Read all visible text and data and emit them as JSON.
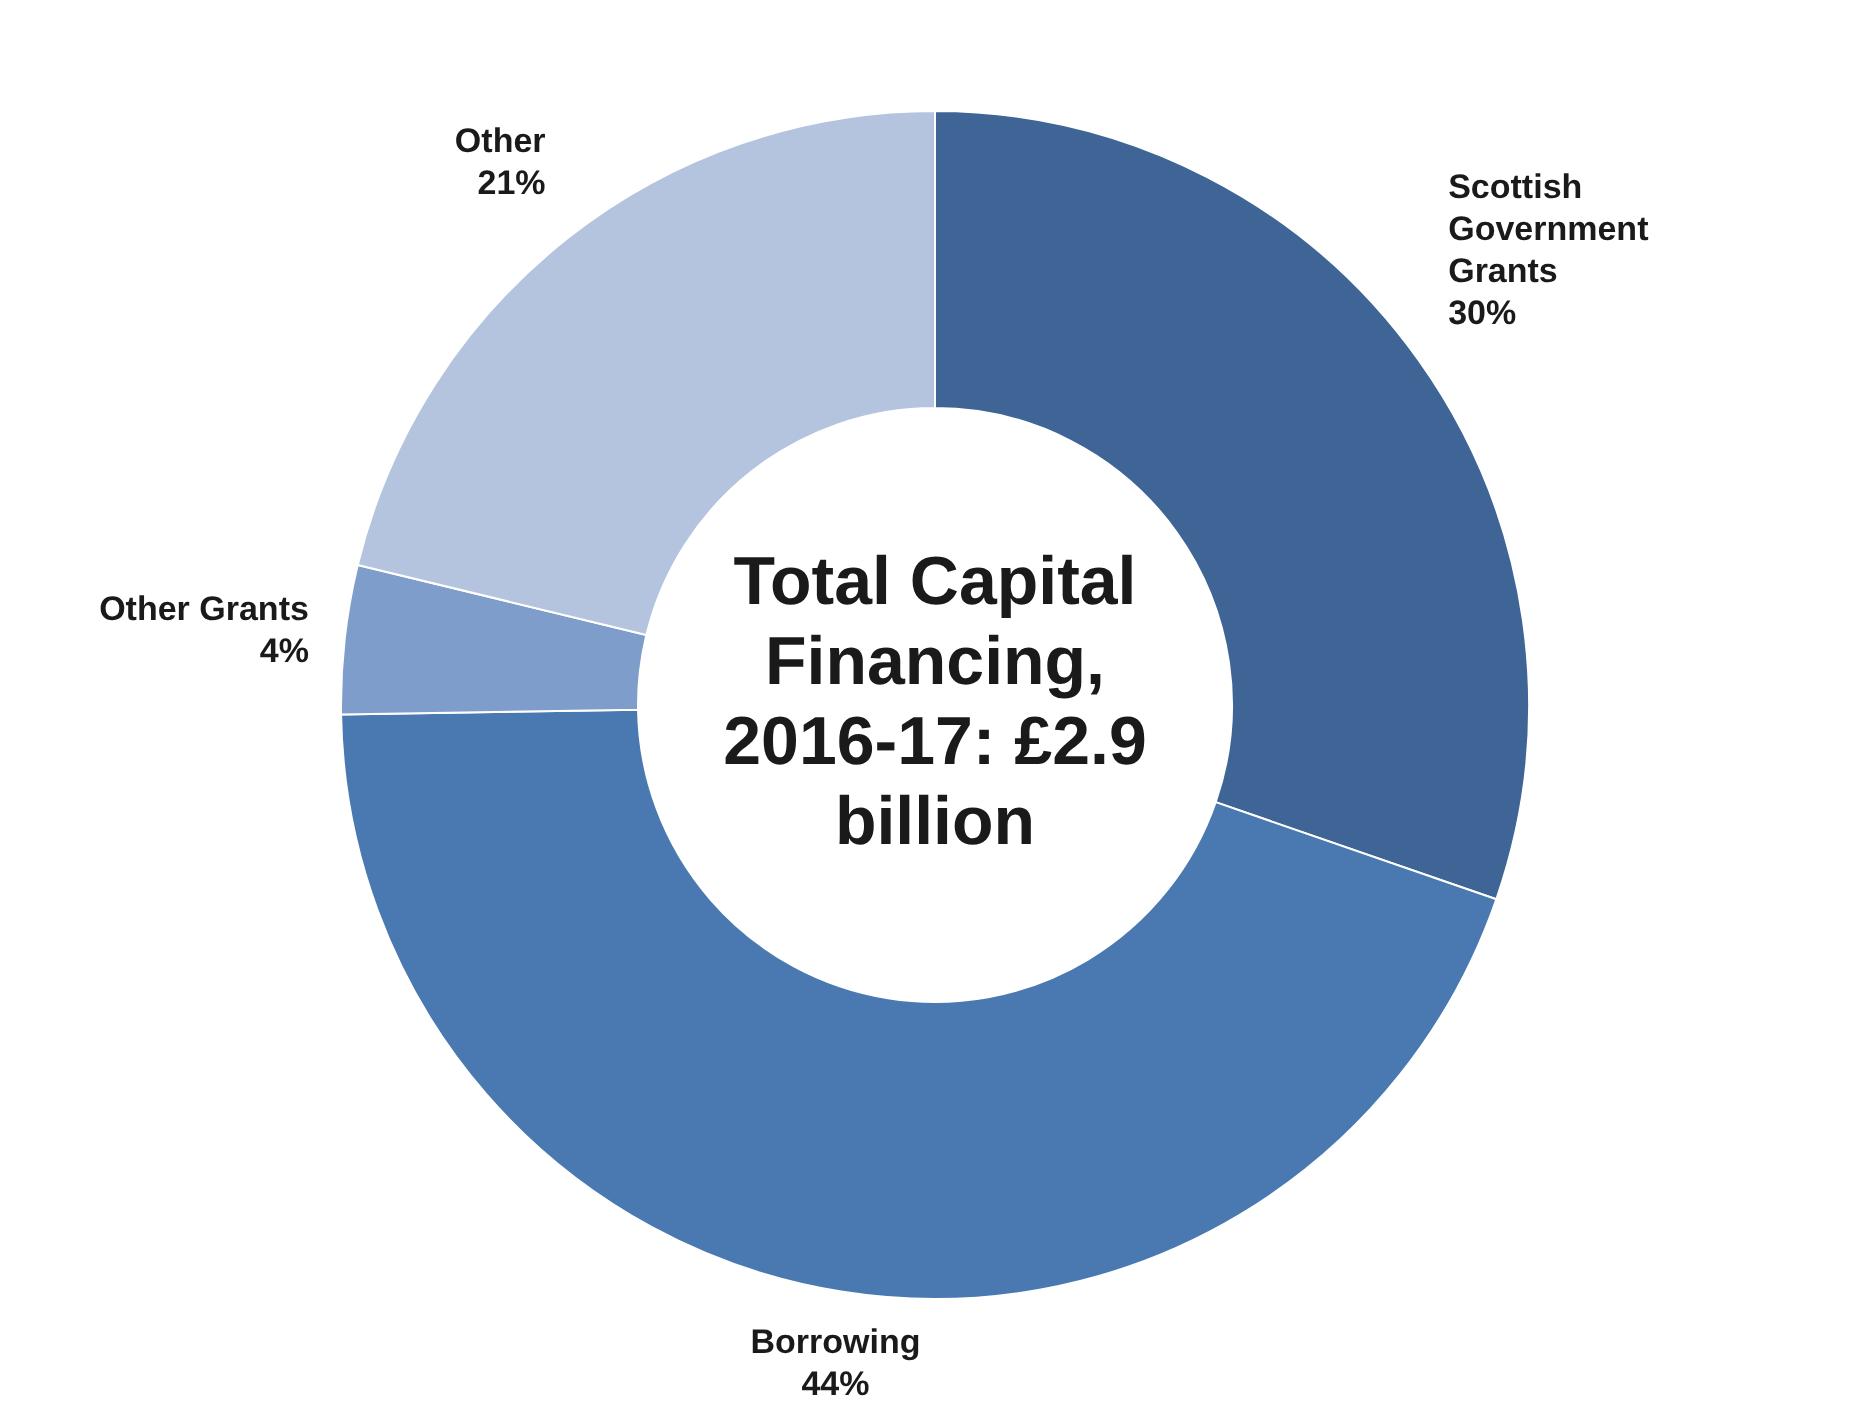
{
  "chart_data": {
    "type": "donut",
    "title": "Total Capital Financing, 2016-17: £2.9 billion",
    "categories": [
      "Scottish Government Grants",
      "Borrowing",
      "Other Grants",
      "Other"
    ],
    "values": [
      30,
      44,
      4,
      21
    ],
    "value_labels": [
      "30%",
      "44%",
      "4%",
      "21%"
    ],
    "colors": [
      "#3e6595",
      "#4a79b1",
      "#7f9dca",
      "#b4c3de"
    ],
    "legend": false
  }
}
